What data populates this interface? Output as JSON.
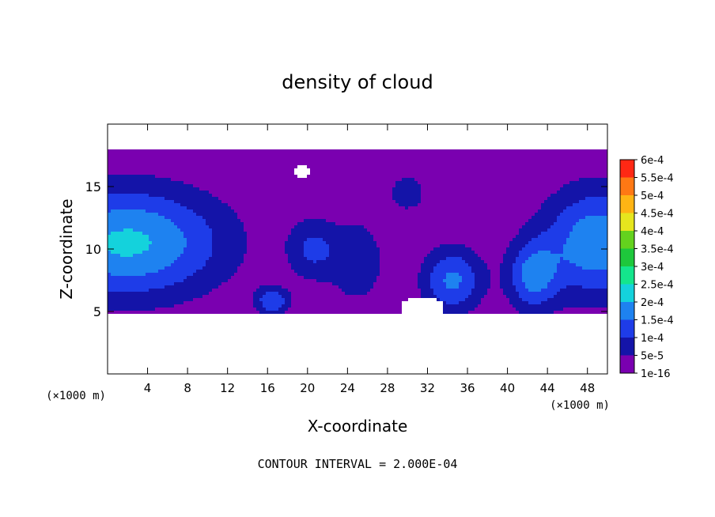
{
  "chart_data": {
    "type": "heatmap",
    "title": "density of cloud",
    "xlabel": "X-coordinate",
    "ylabel": "Z-coordinate",
    "x_unit_left": "(×1000 m)",
    "x_unit_right": "(×1000 m)",
    "xlim": [
      0,
      50
    ],
    "ylim": [
      0,
      20
    ],
    "x_ticks": [
      {
        "value": 4,
        "label": "4"
      },
      {
        "value": 8,
        "label": "8"
      },
      {
        "value": 12,
        "label": "12"
      },
      {
        "value": 16,
        "label": "16"
      },
      {
        "value": 20,
        "label": "20"
      },
      {
        "value": 24,
        "label": "24"
      },
      {
        "value": 28,
        "label": "28"
      },
      {
        "value": 32,
        "label": "32"
      },
      {
        "value": 36,
        "label": "36"
      },
      {
        "value": 40,
        "label": "40"
      },
      {
        "value": 44,
        "label": "44"
      },
      {
        "value": 48,
        "label": "48"
      }
    ],
    "y_ticks": [
      {
        "value": 5,
        "label": "5"
      },
      {
        "value": 10,
        "label": "10"
      },
      {
        "value": 15,
        "label": "15"
      }
    ],
    "colorbar": [
      {
        "label": "1e-16",
        "value": 1e-16,
        "color": "#7a00b0"
      },
      {
        "label": "5e-5",
        "value": 5e-05,
        "color": "#1414a8"
      },
      {
        "label": "1e-4",
        "value": 0.0001,
        "color": "#1e3ce8"
      },
      {
        "label": "1.5e-4",
        "value": 0.00015,
        "color": "#1e82f0"
      },
      {
        "label": "2e-4",
        "value": 0.0002,
        "color": "#14d2dc"
      },
      {
        "label": "2.5e-4",
        "value": 0.00025,
        "color": "#14e68c"
      },
      {
        "label": "3e-4",
        "value": 0.0003,
        "color": "#1ec83c"
      },
      {
        "label": "3.5e-4",
        "value": 0.00035,
        "color": "#64d21e"
      },
      {
        "label": "4e-4",
        "value": 0.0004,
        "color": "#e6e61e"
      },
      {
        "label": "4.5e-4",
        "value": 0.00045,
        "color": "#ffb414"
      },
      {
        "label": "5e-4",
        "value": 0.0005,
        "color": "#ff7814"
      },
      {
        "label": "5.5e-4",
        "value": 0.00055,
        "color": "#ff2814"
      },
      {
        "label": "6e-4",
        "value": 0.0006,
        "color": "#ff9696"
      }
    ],
    "field": {
      "x_range": [
        0,
        50
      ],
      "z_range": [
        4.7,
        17.9
      ],
      "peaks": [
        {
          "x": 2,
          "z": 10.5,
          "sx": 7,
          "sz": 3.2,
          "v": 0.00021
        },
        {
          "x": 49,
          "z": 10.5,
          "sx": 4,
          "sz": 3.2,
          "v": 0.00019
        },
        {
          "x": 34.5,
          "z": 7.5,
          "sx": 2.2,
          "sz": 1.9,
          "v": 0.00016
        },
        {
          "x": 42.5,
          "z": 7.8,
          "sx": 1.8,
          "sz": 2,
          "v": 0.00015
        },
        {
          "x": 20.5,
          "z": 10,
          "sx": 1.8,
          "sz": 1.8,
          "v": 0.0001
        },
        {
          "x": 25,
          "z": 9,
          "sx": 2,
          "sz": 2.5,
          "v": 9e-05
        },
        {
          "x": 30,
          "z": 14.5,
          "sx": 1.5,
          "sz": 1.2,
          "v": 8e-05
        },
        {
          "x": 16.5,
          "z": 5.8,
          "sx": 1.2,
          "sz": 0.8,
          "v": 0.00014
        }
      ],
      "gaps": [
        {
          "x": 31.5,
          "z": 5.3,
          "rx": 2.2,
          "rz": 0.9
        },
        {
          "x": 19.5,
          "z": 16.2,
          "rx": 0.8,
          "rz": 0.5
        }
      ]
    },
    "footer": "CONTOUR INTERVAL = 2.000E-04",
    "grid": false,
    "legend_position": "right"
  }
}
